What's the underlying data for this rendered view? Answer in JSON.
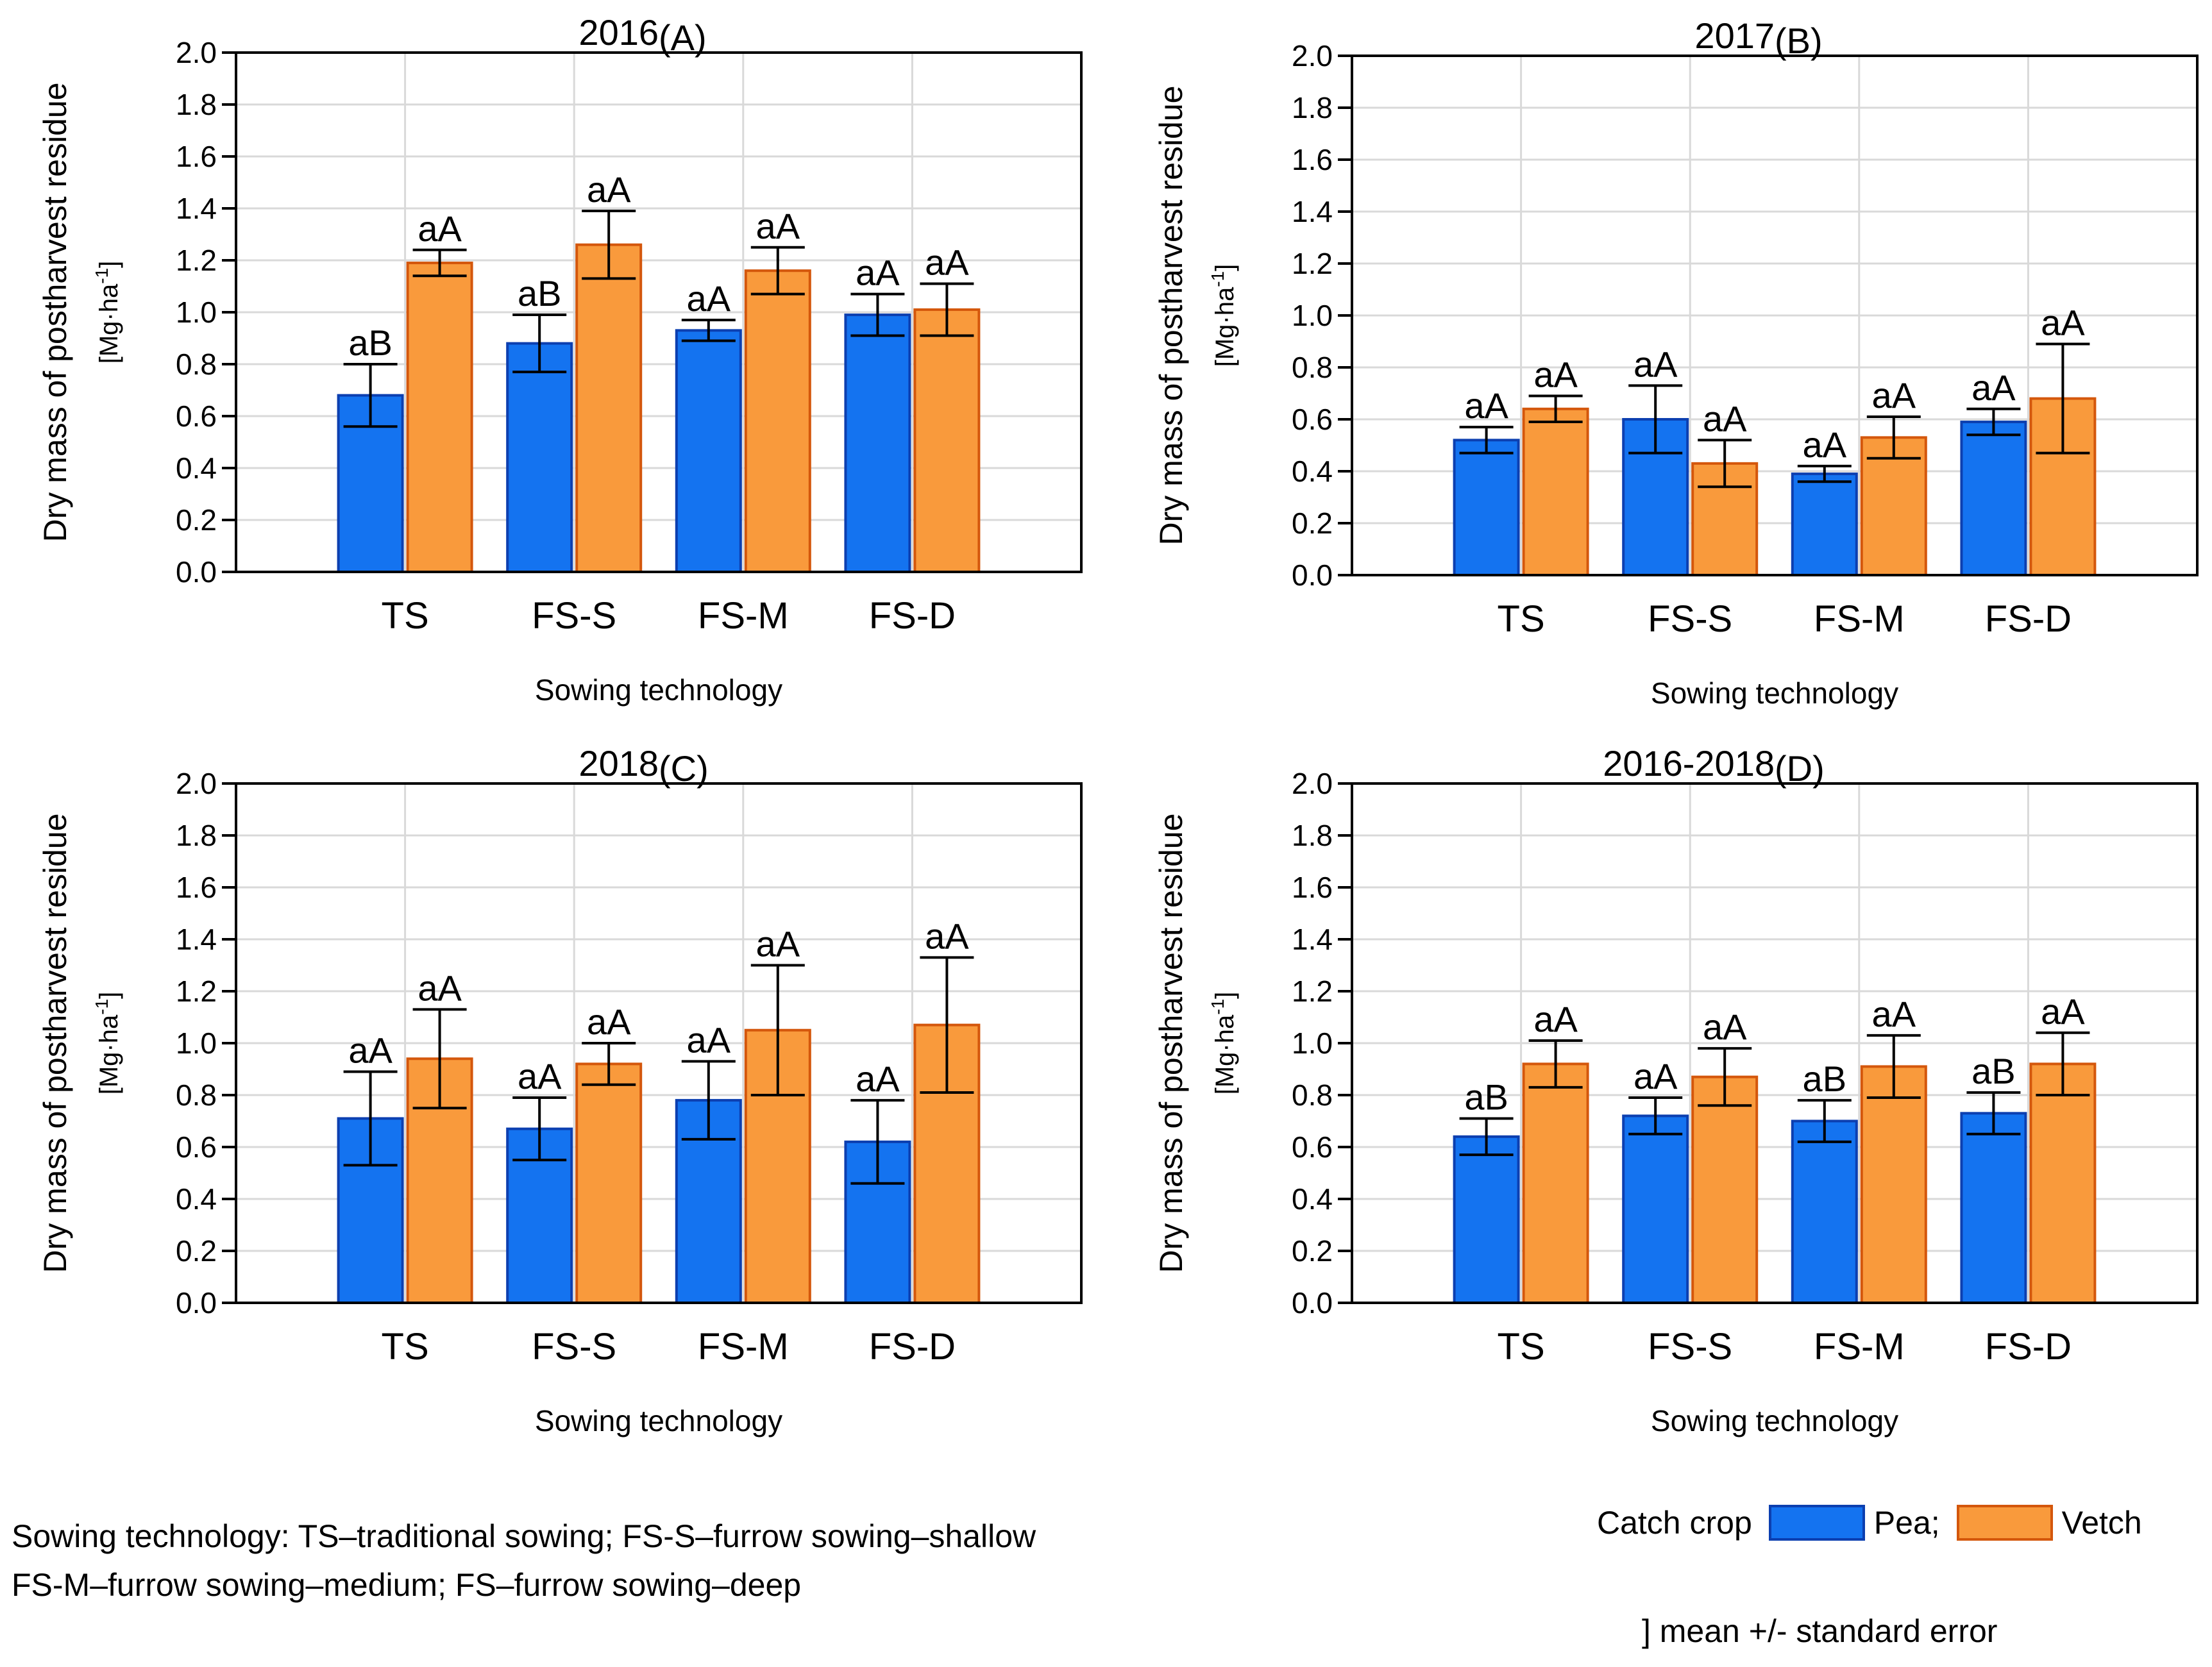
{
  "colors": {
    "pea_fill": "#1473F0",
    "pea_edge": "#0C3FB0",
    "vetch_fill": "#F99A3C",
    "vetch_edge": "#D4570C",
    "grid": "#D9D9D9"
  },
  "chart_data": [
    {
      "type": "bar",
      "title": "2016",
      "panel_label": "(A)",
      "xlabel": "Sowing technology",
      "ylabel": "Dry mass of postharvest residue",
      "yunit_prefix": "[Mg",
      "yunit_mid": "ha",
      "yunit_sup": "-1",
      "yunit_suffix": "]",
      "ylim": [
        0,
        2.0
      ],
      "yticks": [
        "0.0",
        "0.2",
        "0.4",
        "0.6",
        "0.8",
        "1.0",
        "1.2",
        "1.4",
        "1.6",
        "1.8",
        "2.0"
      ],
      "categories": [
        "TS",
        "FS-S",
        "FS-M",
        "FS-D"
      ],
      "series": [
        {
          "name": "Pea",
          "values": [
            0.68,
            0.88,
            0.93,
            0.99
          ],
          "errors": [
            0.12,
            0.11,
            0.04,
            0.08
          ],
          "letters": [
            "aB",
            "aB",
            "aA",
            "aA"
          ]
        },
        {
          "name": "Vetch",
          "values": [
            1.19,
            1.26,
            1.16,
            1.01
          ],
          "errors": [
            0.05,
            0.13,
            0.09,
            0.1
          ],
          "letters": [
            "aA",
            "aA",
            "aA",
            "aA"
          ]
        }
      ]
    },
    {
      "type": "bar",
      "title": "2017",
      "panel_label": "(B)",
      "xlabel": "Sowing technology",
      "ylabel": "Dry mass of postharvest residue",
      "yunit_prefix": "[Mg",
      "yunit_mid": "ha",
      "yunit_sup": "-1",
      "yunit_suffix": "]",
      "ylim": [
        0,
        2.0
      ],
      "yticks": [
        "0.0",
        "0.2",
        "0.4",
        "0.6",
        "0.8",
        "1.0",
        "1.2",
        "1.4",
        "1.6",
        "1.8",
        "2.0"
      ],
      "categories": [
        "TS",
        "FS-S",
        "FS-M",
        "FS-D"
      ],
      "series": [
        {
          "name": "Pea",
          "values": [
            0.52,
            0.6,
            0.39,
            0.59
          ],
          "errors": [
            0.05,
            0.13,
            0.03,
            0.05
          ],
          "letters": [
            "aA",
            "aA",
            "aA",
            "aA"
          ]
        },
        {
          "name": "Vetch",
          "values": [
            0.64,
            0.43,
            0.53,
            0.68
          ],
          "errors": [
            0.05,
            0.09,
            0.08,
            0.21
          ],
          "letters": [
            "aA",
            "aA",
            "aA",
            "aA"
          ]
        }
      ]
    },
    {
      "type": "bar",
      "title": "2018",
      "panel_label": "(C)",
      "xlabel": "Sowing technology",
      "ylabel": "Dry mass of postharvest residue",
      "yunit_prefix": "[Mg",
      "yunit_mid": "ha",
      "yunit_sup": "-1",
      "yunit_suffix": "]",
      "ylim": [
        0,
        2.0
      ],
      "yticks": [
        "0.0",
        "0.2",
        "0.4",
        "0.6",
        "0.8",
        "1.0",
        "1.2",
        "1.4",
        "1.6",
        "1.8",
        "2.0"
      ],
      "categories": [
        "TS",
        "FS-S",
        "FS-M",
        "FS-D"
      ],
      "series": [
        {
          "name": "Pea",
          "values": [
            0.71,
            0.67,
            0.78,
            0.62
          ],
          "errors": [
            0.18,
            0.12,
            0.15,
            0.16
          ],
          "letters": [
            "aA",
            "aA",
            "aA",
            "aA"
          ]
        },
        {
          "name": "Vetch",
          "values": [
            0.94,
            0.92,
            1.05,
            1.07
          ],
          "errors": [
            0.19,
            0.08,
            0.25,
            0.26
          ],
          "letters": [
            "aA",
            "aA",
            "aA",
            "aA"
          ]
        }
      ]
    },
    {
      "type": "bar",
      "title": "2016-2018",
      "panel_label": "(D)",
      "xlabel": "Sowing technology",
      "ylabel": "Dry mass of postharvest residue",
      "yunit_prefix": "[Mg",
      "yunit_mid": "ha",
      "yunit_sup": "-1",
      "yunit_suffix": "]",
      "ylim": [
        0,
        2.0
      ],
      "yticks": [
        "0.0",
        "0.2",
        "0.4",
        "0.6",
        "0.8",
        "1.0",
        "1.2",
        "1.4",
        "1.6",
        "1.8",
        "2.0"
      ],
      "categories": [
        "TS",
        "FS-S",
        "FS-M",
        "FS-D"
      ],
      "series": [
        {
          "name": "Pea",
          "values": [
            0.64,
            0.72,
            0.7,
            0.73
          ],
          "errors": [
            0.07,
            0.07,
            0.08,
            0.08
          ],
          "letters": [
            "aB",
            "aA",
            "aB",
            "aB"
          ]
        },
        {
          "name": "Vetch",
          "values": [
            0.92,
            0.87,
            0.91,
            0.92
          ],
          "errors": [
            0.09,
            0.11,
            0.12,
            0.12
          ],
          "letters": [
            "aA",
            "aA",
            "aA",
            "aA"
          ]
        }
      ]
    }
  ],
  "footnote": {
    "line1": "Sowing technology: TS–traditional sowing; FS-S–furrow sowing–shallow",
    "line2": "FS-M–furrow sowing–medium; FS–furrow sowing–deep"
  },
  "legend": {
    "title": "Catch crop",
    "pea_label": "Pea;",
    "vetch_label": "Vetch",
    "error_note": "] mean +/- standard error"
  }
}
